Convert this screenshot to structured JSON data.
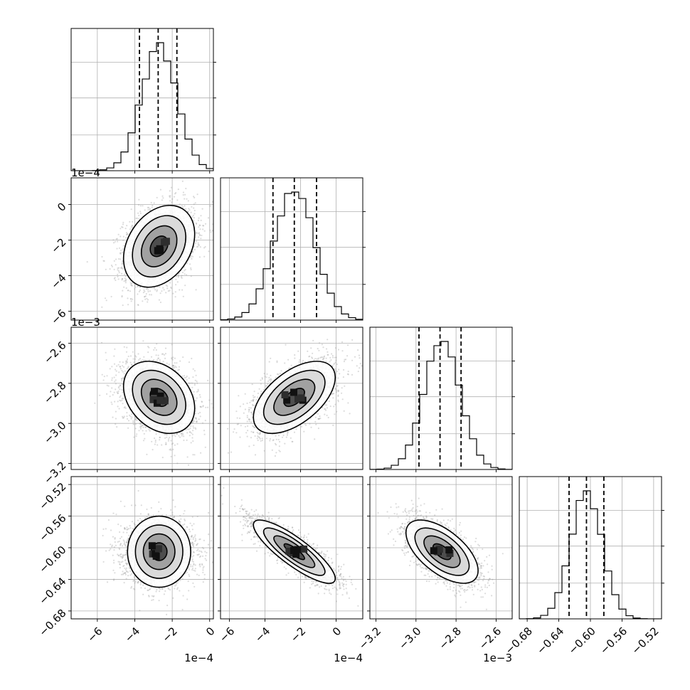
{
  "chart_data": {
    "type": "corner",
    "description_free": true,
    "n_params": 4,
    "grid": true,
    "params": [
      {
        "range": [
          -0.00074,
          2e-05
        ],
        "ticks": [
          -0.0006,
          -0.0004,
          -0.0002,
          0
        ],
        "tick_labels": [
          "−6",
          "−4",
          "−2",
          "0"
        ],
        "offset_label": "1e−4",
        "quantiles": [
          -0.000375,
          -0.000275,
          -0.000175
        ],
        "mean": -0.00027,
        "sd": 9.5e-05
      },
      {
        "range": [
          -0.00065,
          0.00015
        ],
        "ticks": [
          -0.0006,
          -0.0004,
          -0.0002,
          0
        ],
        "tick_labels": [
          "−6",
          "−4",
          "−2",
          "0"
        ],
        "offset_label": "1e−4",
        "quantiles": [
          -0.000355,
          -0.000235,
          -0.00011
        ],
        "mean": -0.000235,
        "sd": 0.000115
      },
      {
        "range": [
          -0.00323,
          -0.00252
        ],
        "ticks": [
          -0.0032,
          -0.003,
          -0.0028,
          -0.0026
        ],
        "tick_labels": [
          "−3.2",
          "−3.0",
          "−2.8",
          "−2.6"
        ],
        "offset_label": "1e−3",
        "quantiles": [
          -0.002985,
          -0.00288,
          -0.002775
        ],
        "mean": -0.00287,
        "sd": 9e-05
      },
      {
        "range": [
          -0.69,
          -0.51
        ],
        "ticks": [
          -0.68,
          -0.64,
          -0.6,
          -0.56,
          -0.52
        ],
        "tick_labels": [
          "−0.68",
          "−0.64",
          "−0.60",
          "−0.56",
          "−0.52"
        ],
        "offset_label": "",
        "quantiles": [
          -0.627,
          -0.605,
          -0.583
        ],
        "mean": -0.605,
        "sd": 0.02
      }
    ],
    "correlations": {
      "1-0": 0.3,
      "2-0": -0.3,
      "2-1": 0.55,
      "3-0": 0.0,
      "3-1": -0.85,
      "3-2": -0.6
    }
  }
}
